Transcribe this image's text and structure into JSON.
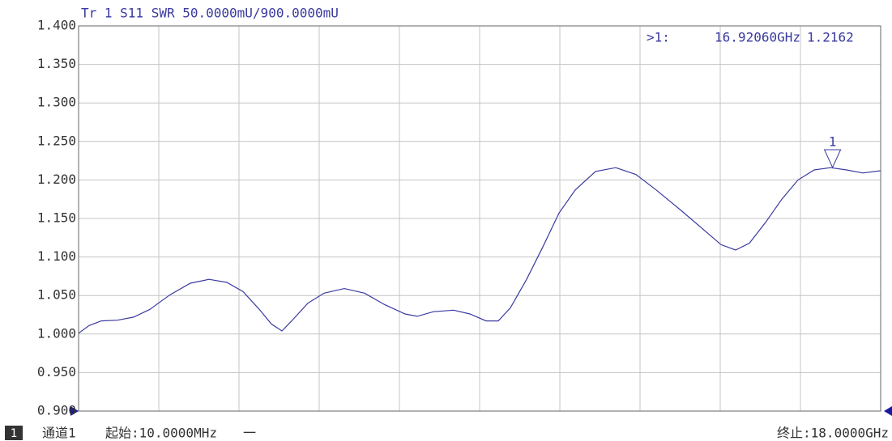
{
  "chart_data": {
    "type": "line",
    "title": "Tr 1  S11 SWR 50.0000mU/900.0000mU",
    "x": [
      0.01,
      0.246,
      0.519,
      0.882,
      1.246,
      1.609,
      2.063,
      2.518,
      2.936,
      3.335,
      3.699,
      4.062,
      4.335,
      4.571,
      4.789,
      5.153,
      5.516,
      5.97,
      6.425,
      6.879,
      7.333,
      7.606,
      7.969,
      8.424,
      8.787,
      9.15,
      9.423,
      9.696,
      10.059,
      10.423,
      10.786,
      11.149,
      11.604,
      12.058,
      12.512,
      12.967,
      13.512,
      14.057,
      14.42,
      14.747,
      15.056,
      15.419,
      15.783,
      16.146,
      16.51,
      16.873,
      17.236,
      17.6,
      18.0
    ],
    "series": [
      {
        "name": "S11 SWR",
        "color": "#3a3aa0",
        "values": [
          1.001,
          1.011,
          1.017,
          1.018,
          1.022,
          1.032,
          1.051,
          1.066,
          1.071,
          1.067,
          1.055,
          1.032,
          1.013,
          1.004,
          1.017,
          1.04,
          1.053,
          1.059,
          1.053,
          1.038,
          1.026,
          1.023,
          1.029,
          1.031,
          1.026,
          1.017,
          1.017,
          1.034,
          1.071,
          1.113,
          1.157,
          1.187,
          1.211,
          1.216,
          1.207,
          1.187,
          1.161,
          1.134,
          1.116,
          1.109,
          1.118,
          1.145,
          1.175,
          1.2,
          1.213,
          1.216,
          1.213,
          1.209,
          1.212
        ]
      }
    ],
    "xlim": [
      0.01,
      18.0
    ],
    "xticks": [
      0.01,
      1.809,
      3.608,
      5.407,
      7.206,
      9.005,
      10.804,
      12.603,
      14.402,
      16.201,
      18.0
    ],
    "ylim": [
      0.9,
      1.4
    ],
    "yticks": [
      {
        "value": 0.9,
        "label": "0.900"
      },
      {
        "value": 0.95,
        "label": "0.950"
      },
      {
        "value": 1.0,
        "label": "1.000"
      },
      {
        "value": 1.05,
        "label": "1.050"
      },
      {
        "value": 1.1,
        "label": "1.100"
      },
      {
        "value": 1.15,
        "label": "1.150"
      },
      {
        "value": 1.2,
        "label": "1.200"
      },
      {
        "value": 1.25,
        "label": "1.250"
      },
      {
        "value": 1.3,
        "label": "1.300"
      },
      {
        "value": 1.35,
        "label": "1.350"
      },
      {
        "value": 1.4,
        "label": "1.400"
      }
    ],
    "grid": true,
    "marker": {
      "label": "1",
      "readout": ">1:",
      "x": 16.9206,
      "x_label": "16.92060GHz",
      "value": 1.2162
    },
    "footer": {
      "channel_number": "1",
      "channel": "通道1",
      "start": "起始:10.0000MHz",
      "dash": "一",
      "stop": "终止:18.0000GHz"
    }
  }
}
